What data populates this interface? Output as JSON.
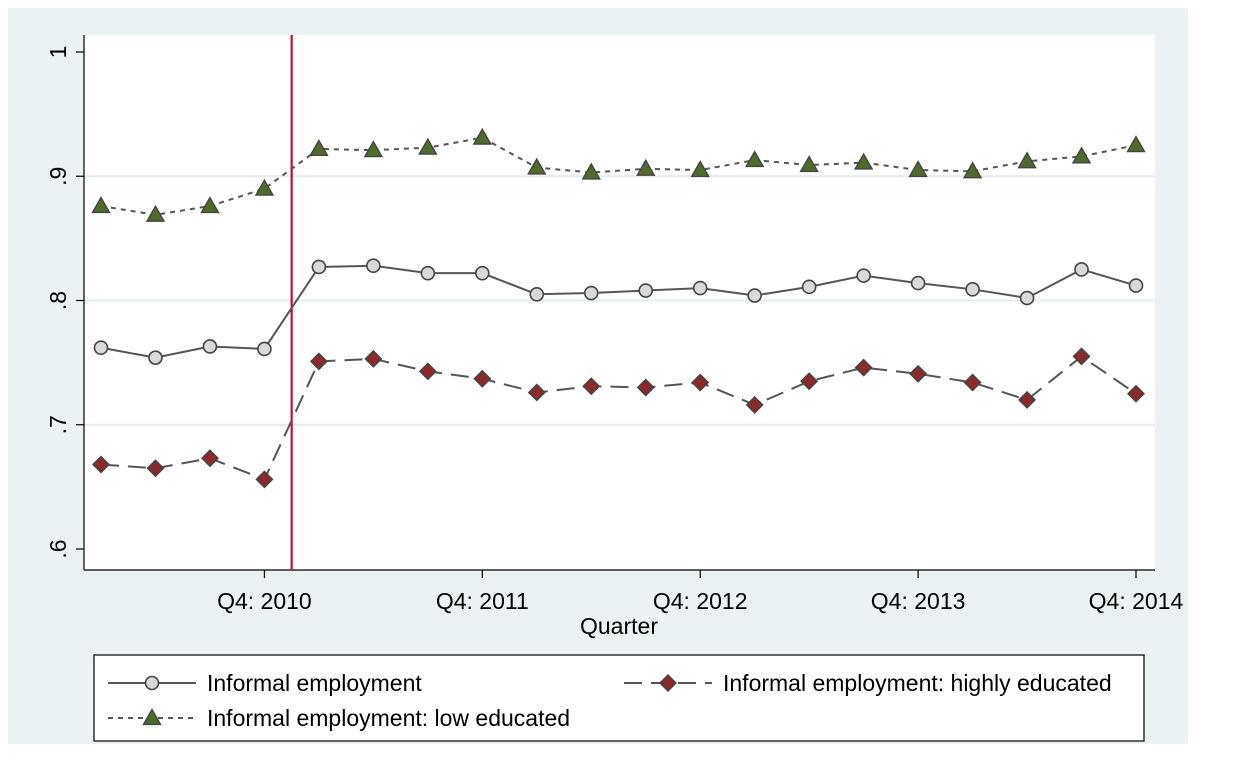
{
  "chart_data": {
    "type": "line",
    "xlabel": "Quarter",
    "x_tick_labels": [
      "Q4: 2010",
      "Q4: 2011",
      "Q4: 2012",
      "Q4: 2013",
      "Q4: 2014"
    ],
    "x_tick_index": [
      3,
      7,
      11,
      15,
      19
    ],
    "y_ticks": [
      0.6,
      0.7,
      0.8,
      0.9,
      1.0
    ],
    "y_tick_labels": [
      ".6",
      ".7",
      ".8",
      ".9",
      "1"
    ],
    "ylim": [
      0.6,
      1.0
    ],
    "grid": "horizontal",
    "vertical_line_after_index": 3.5,
    "x": [
      "Q1: 2010",
      "Q2: 2010",
      "Q3: 2010",
      "Q4: 2010",
      "Q1: 2011",
      "Q2: 2011",
      "Q3: 2011",
      "Q4: 2011",
      "Q1: 2012",
      "Q2: 2012",
      "Q3: 2012",
      "Q4: 2012",
      "Q1: 2013",
      "Q2: 2013",
      "Q3: 2013",
      "Q4: 2013",
      "Q1: 2014",
      "Q2: 2014",
      "Q3: 2014",
      "Q4: 2014"
    ],
    "series": [
      {
        "name": "Informal employment",
        "style": "solid",
        "marker": "circle",
        "color": "#555555",
        "marker_fill": "#d9d9d9",
        "values": [
          0.762,
          0.754,
          0.763,
          0.761,
          0.827,
          0.828,
          0.822,
          0.822,
          0.805,
          0.806,
          0.808,
          0.81,
          0.804,
          0.811,
          0.82,
          0.814,
          0.809,
          0.802,
          0.825,
          0.812
        ]
      },
      {
        "name": "Informal employment: highly educated",
        "style": "dashed",
        "marker": "diamond",
        "color": "#555555",
        "marker_fill": "#8b2a2a",
        "values": [
          0.668,
          0.665,
          0.673,
          0.656,
          0.751,
          0.753,
          0.743,
          0.737,
          0.726,
          0.731,
          0.73,
          0.734,
          0.716,
          0.735,
          0.746,
          0.741,
          0.734,
          0.72,
          0.755,
          0.725
        ]
      },
      {
        "name": "Informal employment: low educated",
        "style": "dotted",
        "marker": "triangle",
        "color": "#555555",
        "marker_fill": "#4d6b2a",
        "values": [
          0.876,
          0.869,
          0.876,
          0.89,
          0.922,
          0.921,
          0.923,
          0.931,
          0.907,
          0.903,
          0.906,
          0.905,
          0.913,
          0.909,
          0.911,
          0.905,
          0.904,
          0.912,
          0.916,
          0.925
        ]
      }
    ],
    "legend": "bottom"
  }
}
